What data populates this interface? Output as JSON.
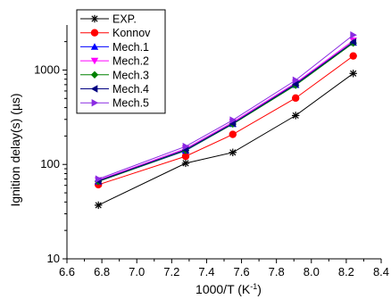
{
  "chart_data": {
    "type": "line",
    "xlabel": "1000/T (K",
    "xlabel_sup": "-1",
    "xlabel_suffix": ")",
    "ylabel": "Ignition delay(s) (µs)",
    "xlim": [
      6.6,
      8.4
    ],
    "ylim": [
      10,
      3000
    ],
    "yscale": "log",
    "grid": false,
    "legend_position": "top-left",
    "x_ticks": [
      "6.6",
      "6.8",
      "7.0",
      "7.2",
      "7.4",
      "7.6",
      "7.8",
      "8.0",
      "8.2",
      "8.4"
    ],
    "y_ticks": [
      "10",
      "100",
      "1000"
    ],
    "x": [
      6.78,
      7.28,
      7.55,
      7.91,
      8.24
    ],
    "series": [
      {
        "name": "EXP.",
        "color": "#000000",
        "marker": "asterisk",
        "values": [
          37,
          103,
          134,
          330,
          920
        ]
      },
      {
        "name": "Konnov",
        "color": "#ff0000",
        "marker": "circle",
        "values": [
          61,
          122,
          208,
          505,
          1410
        ]
      },
      {
        "name": "Mech.1",
        "color": "#0000ff",
        "marker": "triangle-up",
        "values": [
          66,
          140,
          268,
          695,
          1950
        ]
      },
      {
        "name": "Mech.2",
        "color": "#ff00ff",
        "marker": "triangle-down",
        "values": [
          68,
          147,
          280,
          730,
          2050
        ]
      },
      {
        "name": "Mech.3",
        "color": "#008000",
        "marker": "diamond",
        "values": [
          66,
          141,
          268,
          690,
          1930
        ]
      },
      {
        "name": "Mech.4",
        "color": "#000080",
        "marker": "triangle-left",
        "values": [
          67,
          143,
          272,
          710,
          1980
        ]
      },
      {
        "name": "Mech.5",
        "color": "#8a2be2",
        "marker": "triangle-right",
        "values": [
          70,
          155,
          295,
          780,
          2350
        ]
      }
    ]
  }
}
